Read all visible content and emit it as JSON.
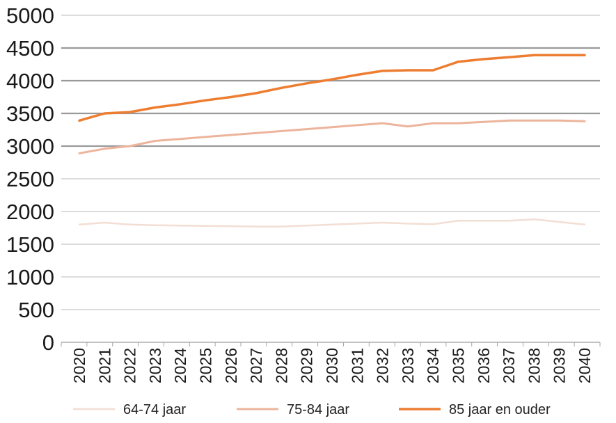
{
  "chart_data": {
    "type": "line",
    "x": [
      "2020",
      "2021",
      "2022",
      "2023",
      "2024",
      "2025",
      "2026",
      "2027",
      "2028",
      "2029",
      "2030",
      "2031",
      "2032",
      "2033",
      "2034",
      "2035",
      "2036",
      "2037",
      "2038",
      "2039",
      "2040"
    ],
    "ylim": [
      0,
      5000
    ],
    "yticks": [
      "0",
      "500",
      "1000",
      "1500",
      "2000",
      "2500",
      "3000",
      "3500",
      "4000",
      "4500",
      "5000"
    ],
    "grid": true,
    "legend_position": "bottom",
    "series": [
      {
        "name": "64-74 jaar",
        "color": "#f2ded4",
        "values": [
          1800,
          1830,
          1800,
          1790,
          1785,
          1780,
          1775,
          1770,
          1770,
          1785,
          1800,
          1815,
          1830,
          1815,
          1805,
          1860,
          1860,
          1860,
          1880,
          1840,
          1800
        ]
      },
      {
        "name": "75-84 jaar",
        "color": "#ecb49b",
        "values": [
          2890,
          2960,
          3000,
          3080,
          3110,
          3140,
          3170,
          3200,
          3230,
          3260,
          3290,
          3320,
          3350,
          3300,
          3350,
          3350,
          3370,
          3390,
          3390,
          3390,
          3380
        ]
      },
      {
        "name": "85 jaar en ouder",
        "color": "#ed7d31",
        "values": [
          3390,
          3500,
          3520,
          3590,
          3640,
          3700,
          3750,
          3810,
          3890,
          3960,
          4020,
          4090,
          4150,
          4160,
          4160,
          4290,
          4330,
          4360,
          4390,
          4390,
          4390
        ]
      }
    ]
  }
}
